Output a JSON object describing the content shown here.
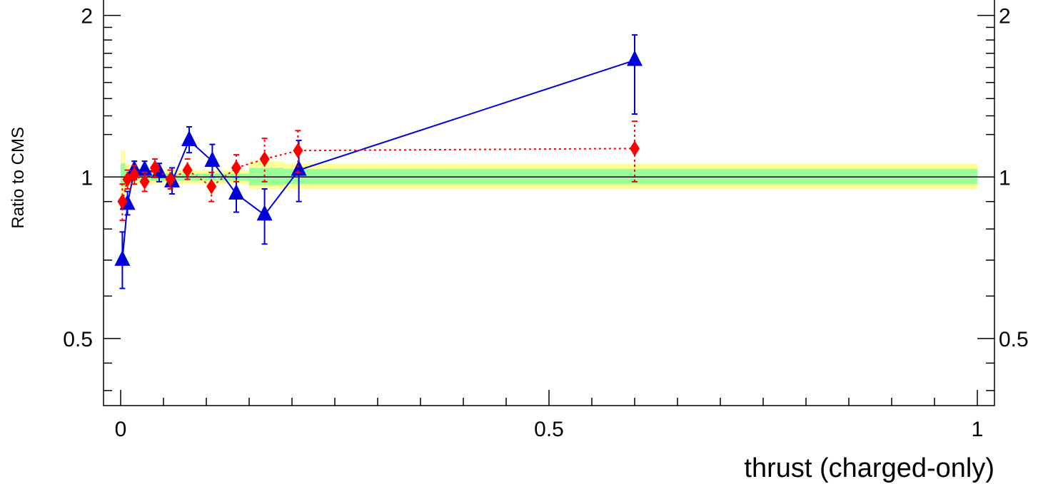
{
  "chart_data": {
    "type": "scatter",
    "title": "",
    "xlabel": "thrust (charged-only)",
    "ylabel": "Ratio to CMS",
    "xlim": [
      -0.02,
      1.02
    ],
    "ylim": [
      0.375,
      2.15
    ],
    "ylog": true,
    "grid": false,
    "x_ticks": [
      {
        "value": 0,
        "label": "0"
      },
      {
        "value": 0.5,
        "label": "0.5"
      },
      {
        "value": 1,
        "label": "1"
      }
    ],
    "y_ticks": [
      {
        "value": 0.5,
        "label": "0.5"
      },
      {
        "value": 1,
        "label": "1"
      },
      {
        "value": 2,
        "label": "2"
      }
    ],
    "reference_line": 1,
    "bins": [
      0,
      0.005,
      0.01,
      0.015,
      0.02,
      0.025,
      0.03,
      0.04,
      0.05,
      0.06,
      0.075,
      0.09,
      0.125,
      0.15,
      0.19,
      1.0
    ],
    "band_outer": {
      "color": "#ffff99",
      "lo": [
        0.92,
        0.96,
        0.97,
        0.97,
        0.97,
        0.97,
        0.97,
        0.97,
        0.97,
        0.97,
        0.97,
        0.97,
        0.97,
        0.95,
        0.95
      ],
      "hi": [
        1.12,
        1.06,
        1.04,
        1.04,
        1.04,
        1.04,
        1.04,
        1.04,
        1.03,
        1.03,
        1.03,
        1.03,
        1.03,
        1.07,
        1.06
      ]
    },
    "band_inner": {
      "color": "#99ff99",
      "lo": [
        0.96,
        0.98,
        0.985,
        0.985,
        0.985,
        0.985,
        0.985,
        0.985,
        0.985,
        0.985,
        0.985,
        0.985,
        0.985,
        0.965,
        0.97
      ],
      "hi": [
        1.06,
        1.03,
        1.02,
        1.02,
        1.02,
        1.02,
        1.02,
        1.02,
        1.015,
        1.015,
        1.015,
        1.015,
        1.015,
        1.04,
        1.035
      ]
    },
    "series": [
      {
        "color": "#0000dd",
        "marker": "triangle",
        "line": "solid",
        "points": [
          {
            "x": 0.002,
            "y": 0.7,
            "lo": 0.62,
            "hi": 0.79
          },
          {
            "x": 0.008,
            "y": 0.89,
            "lo": 0.85,
            "hi": 0.94
          },
          {
            "x": 0.016,
            "y": 1.03,
            "lo": 0.99,
            "hi": 1.07
          },
          {
            "x": 0.028,
            "y": 1.03,
            "lo": 0.99,
            "hi": 1.07
          },
          {
            "x": 0.045,
            "y": 1.02,
            "lo": 0.98,
            "hi": 1.06
          },
          {
            "x": 0.06,
            "y": 0.98,
            "lo": 0.93,
            "hi": 1.04
          },
          {
            "x": 0.08,
            "y": 1.17,
            "lo": 1.11,
            "hi": 1.24
          },
          {
            "x": 0.107,
            "y": 1.07,
            "lo": 1.0,
            "hi": 1.15
          },
          {
            "x": 0.135,
            "y": 0.93,
            "lo": 0.86,
            "hi": 1.0
          },
          {
            "x": 0.168,
            "y": 0.85,
            "lo": 0.75,
            "hi": 0.95
          },
          {
            "x": 0.208,
            "y": 1.03,
            "lo": 0.9,
            "hi": 1.17
          },
          {
            "x": 0.6,
            "y": 1.65,
            "lo": 1.31,
            "hi": 1.84
          }
        ]
      },
      {
        "color": "#ff0000",
        "marker": "diamond",
        "line": "dotted",
        "points": [
          {
            "x": 0.002,
            "y": 0.9,
            "lo": 0.83,
            "hi": 0.97
          },
          {
            "x": 0.008,
            "y": 0.99,
            "lo": 0.95,
            "hi": 1.03
          },
          {
            "x": 0.016,
            "y": 1.01,
            "lo": 0.97,
            "hi": 1.05
          },
          {
            "x": 0.028,
            "y": 0.98,
            "lo": 0.94,
            "hi": 1.02
          },
          {
            "x": 0.04,
            "y": 1.04,
            "lo": 1.0,
            "hi": 1.08
          },
          {
            "x": 0.058,
            "y": 0.99,
            "lo": 0.95,
            "hi": 1.03
          },
          {
            "x": 0.078,
            "y": 1.03,
            "lo": 0.99,
            "hi": 1.08
          },
          {
            "x": 0.106,
            "y": 0.96,
            "lo": 0.9,
            "hi": 1.02
          },
          {
            "x": 0.135,
            "y": 1.04,
            "lo": 0.98,
            "hi": 1.1
          },
          {
            "x": 0.168,
            "y": 1.08,
            "lo": 0.98,
            "hi": 1.18
          },
          {
            "x": 0.207,
            "y": 1.12,
            "lo": 1.02,
            "hi": 1.22
          },
          {
            "x": 0.6,
            "y": 1.13,
            "lo": 0.98,
            "hi": 1.27
          }
        ]
      }
    ]
  }
}
